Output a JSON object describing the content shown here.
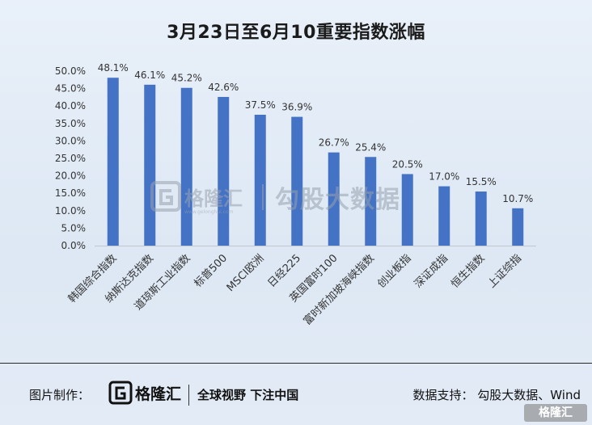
{
  "chart_data": {
    "type": "bar",
    "title": "3月23日至6月10重要指数涨幅",
    "categories": [
      "韩国综合指数",
      "纳斯达克指数",
      "道琼斯工业指数",
      "标普500",
      "MSCI欧洲",
      "日经225",
      "英国富时100",
      "富时新加坡海峡指数",
      "创业板指",
      "深证成指",
      "恒生指数",
      "上证综指"
    ],
    "values": [
      48.1,
      46.1,
      45.2,
      42.6,
      37.5,
      36.9,
      26.7,
      25.4,
      20.5,
      17.0,
      15.5,
      10.7
    ],
    "data_labels": [
      "48.1%",
      "46.1%",
      "45.2%",
      "42.6%",
      "37.5%",
      "36.9%",
      "26.7%",
      "25.4%",
      "20.5%",
      "17.0%",
      "15.5%",
      "10.7%"
    ],
    "ylim": [
      0,
      50
    ],
    "yticks": [
      0,
      5,
      10,
      15,
      20,
      25,
      30,
      35,
      40,
      45,
      50
    ],
    "ytick_labels": [
      "0.0%",
      "5.0%",
      "10.0%",
      "15.0%",
      "20.0%",
      "25.0%",
      "30.0%",
      "35.0%",
      "40.0%",
      "45.0%",
      "50.0%"
    ],
    "xlabel": "",
    "ylabel": "",
    "grid": false,
    "bar_color": "#4472c4"
  },
  "footer": {
    "credit_label": "图片制作：",
    "brand": "格隆汇",
    "slogan": "全球视野 下注中国",
    "source": "数据支持：  勾股大数据、Wind"
  },
  "watermark": {
    "brand": "格隆汇",
    "text": "勾股大数据",
    "site": "www.gelonghui.com"
  },
  "corner_mark": "格隆汇"
}
